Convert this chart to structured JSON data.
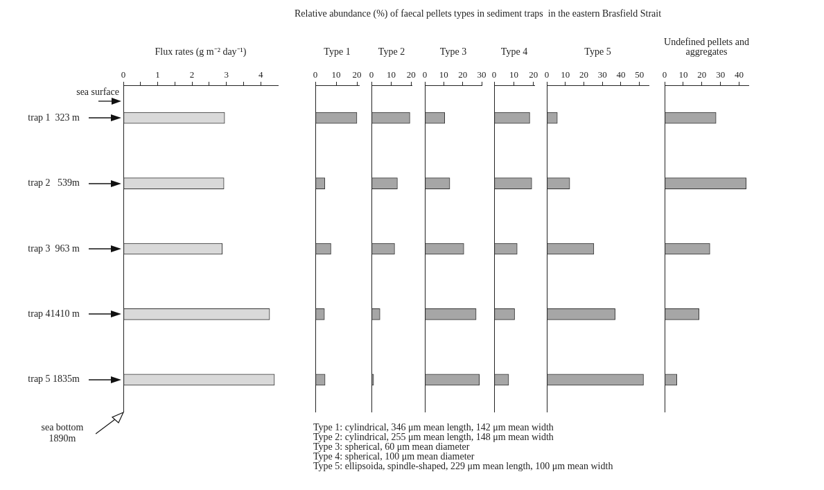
{
  "chart_data": [
    {
      "type": "bar",
      "orientation": "horizontal",
      "title": "Flux rates (g m⁻² day⁻¹)",
      "categories": [
        "trap 1  323 m",
        "trap 2   539m",
        "trap 3  963 m",
        "trap 41410 m",
        "trap 5 1835m"
      ],
      "values": [
        2.95,
        2.93,
        2.88,
        4.26,
        4.4
      ],
      "color": "#d9d9d9",
      "xlim": [
        0,
        4.5
      ],
      "xticks": [
        0,
        {
          "value": 0.5,
          "label": null
        },
        1,
        {
          "value": 1.5,
          "label": null
        },
        2,
        {
          "value": 2.5,
          "label": null
        },
        3,
        {
          "value": 3.5,
          "label": null
        },
        4
      ],
      "annotations": [
        "sea surface",
        "sea bottom 1890m"
      ]
    },
    {
      "type": "bar",
      "orientation": "horizontal",
      "title": "Type 1",
      "subtitle": "Relative abundance (%) of faecal pellets types in sediment traps  in the eastern Brasfield Strait",
      "categories": [
        null,
        null,
        null,
        null,
        null
      ],
      "values": [
        20,
        4.6,
        7.5,
        4.4,
        4.7
      ],
      "color": "#a6a6a6",
      "xlim": [
        0,
        21
      ],
      "xticks": [
        0,
        10,
        20
      ],
      "tick_labels": "x",
      "annotations": [
        "Type 1: cylindrical, 346 μm mean length, 142 μm mean width",
        "Type 2: cylindrical, 255 μm mean length, 148 μm mean width",
        "Type 3: spherical, 60 μm mean diameter",
        "Type 4: spherical, 100 μm mean diameter",
        "Type 5: ellipsoida, spindle-shaped, 229 μm mean length, 100 μm mean width"
      ]
    },
    {
      "type": "bar",
      "orientation": "horizontal",
      "title": "Type 2",
      "categories": [
        null,
        null,
        null,
        null,
        null
      ],
      "values": [
        19.4,
        13.1,
        11.7,
        4.3,
        1.1
      ],
      "color": "#a6a6a6",
      "xlim": [
        0,
        20.3
      ],
      "xticks": [
        0,
        10,
        20
      ],
      "tick_labels": "x"
    },
    {
      "type": "bar",
      "orientation": "horizontal",
      "title": "Type 3",
      "categories": [
        null,
        null,
        null,
        null,
        null
      ],
      "values": [
        10.5,
        13.2,
        20.6,
        27.1,
        28.8
      ],
      "color": "#a6a6a6",
      "xlim": [
        0,
        30
      ],
      "xticks": [
        0,
        10,
        20,
        30
      ],
      "tick_labels": "x"
    },
    {
      "type": "bar",
      "orientation": "horizontal",
      "title": "Type 4",
      "categories": [
        null,
        null,
        null,
        null,
        null
      ],
      "values": [
        18.1,
        19.1,
        11.7,
        10.4,
        7.4
      ],
      "color": "#a6a6a6",
      "xlim": [
        0,
        20.4
      ],
      "xticks": [
        0,
        10,
        20
      ],
      "tick_labels": "x"
    },
    {
      "type": "bar",
      "orientation": "horizontal",
      "title": "Type 5",
      "categories": [
        null,
        null,
        null,
        null,
        null
      ],
      "values": [
        5.7,
        12.4,
        25.4,
        36.9,
        52.2
      ],
      "color": "#a6a6a6",
      "xlim": [
        0,
        55
      ],
      "xticks": [
        0,
        10,
        20,
        30,
        40,
        50
      ],
      "tick_labels": "x"
    },
    {
      "type": "bar",
      "orientation": "horizontal",
      "title": "Undefined pellets and aggregates",
      "categories": [
        null,
        null,
        null,
        null,
        null
      ],
      "values": [
        27.6,
        43.8,
        24.3,
        18.5,
        6.6
      ],
      "color": "#a6a6a6",
      "xlim": [
        0,
        45
      ],
      "xticks": [
        0,
        10,
        20,
        30,
        40
      ],
      "tick_labels": "x"
    }
  ]
}
